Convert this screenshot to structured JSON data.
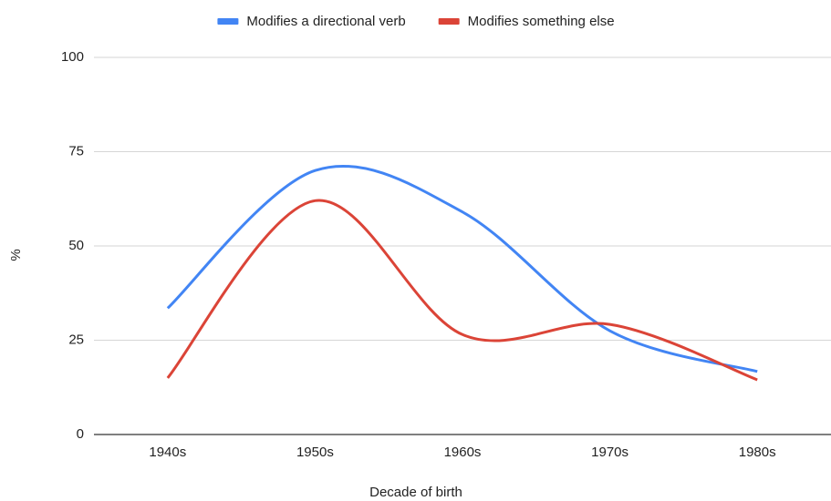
{
  "chart_data": {
    "type": "line",
    "x_label": "Decade of birth",
    "y_label": "%",
    "categories": [
      "1940s",
      "1950s",
      "1960s",
      "1970s",
      "1980s"
    ],
    "series": [
      {
        "name": "Modifies a directional verb",
        "color": "#4285f4",
        "values": [
          33.5,
          70,
          59,
          27.5,
          16.7
        ]
      },
      {
        "name": "Modifies something else",
        "color": "#db4437",
        "values": [
          15,
          62,
          26.5,
          29.2,
          14.5
        ]
      }
    ],
    "ylim": [
      0,
      100
    ],
    "yticks": [
      0,
      25,
      50,
      75,
      100
    ],
    "grid": true,
    "smooth": true,
    "legend": "top"
  }
}
